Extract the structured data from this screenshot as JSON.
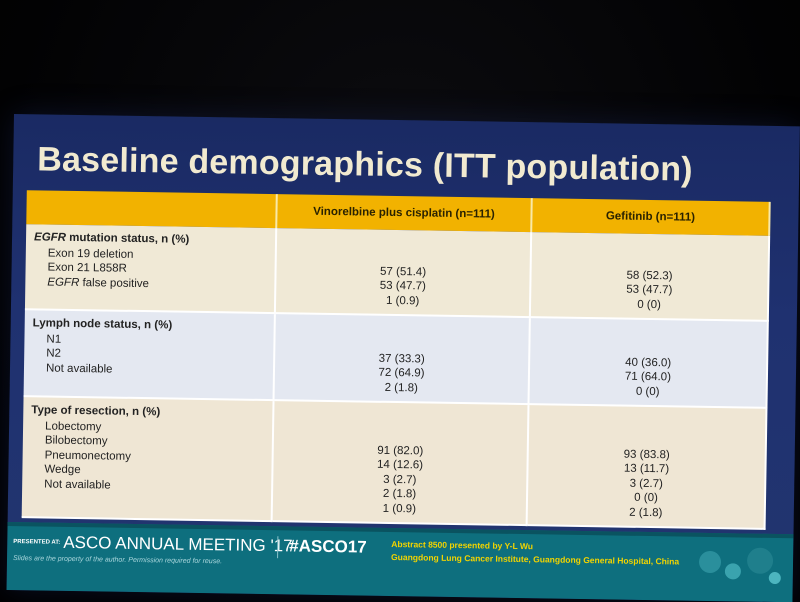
{
  "slide": {
    "title": "Baseline demographics (ITT population)"
  },
  "table": {
    "headers": [
      "",
      "Vinorelbine plus cisplatin (n=111)",
      "Gefitinib (n=111)"
    ],
    "sections": [
      {
        "title_italic": "EGFR",
        "title_rest": " mutation status, n (%)",
        "rows": [
          {
            "label": "Exon 19 deletion",
            "a": "57 (51.4)",
            "b": "58 (52.3)"
          },
          {
            "label": "Exon 21 L858R",
            "a": "53 (47.7)",
            "b": "53 (47.7)"
          },
          {
            "label_italic": "EGFR",
            "label_rest": " false positive",
            "a": "1 (0.9)",
            "b": "0 (0)"
          }
        ]
      },
      {
        "title": "Lymph node status, n (%)",
        "rows": [
          {
            "label": "N1",
            "a": "37 (33.3)",
            "b": "40 (36.0)"
          },
          {
            "label": "N2",
            "a": "72 (64.9)",
            "b": "71 (64.0)"
          },
          {
            "label": "Not available",
            "a": "2 (1.8)",
            "b": "0 (0)"
          }
        ]
      },
      {
        "title": "Type of resection, n (%)",
        "rows": [
          {
            "label": "Lobectomy",
            "a": "91 (82.0)",
            "b": "93 (83.8)"
          },
          {
            "label": "Bilobectomy",
            "a": "14 (12.6)",
            "b": "13 (11.7)"
          },
          {
            "label": "Pneumonectomy",
            "a": "3 (2.7)",
            "b": "3 (2.7)"
          },
          {
            "label": "Wedge",
            "a": "2 (1.8)",
            "b": "0 (0)"
          },
          {
            "label": "Not  available",
            "a": "1 (0.9)",
            "b": "2 (1.8)"
          }
        ]
      }
    ]
  },
  "footer": {
    "presented_at": "PRESENTED AT:",
    "meeting": "ASCO ANNUAL MEETING '17",
    "hashtag": "#ASCO17",
    "disclaimer": "Slides are the property of the author. Permission required for reuse.",
    "abstract": "Abstract 8500 presented by Y-L Wu",
    "institution": "Guangdong Lung Cancer Institute, Guangdong General Hospital, China"
  },
  "colors": {
    "slide_bg": "#1f3170",
    "title": "#f1ead0",
    "header_bg": "#f2b200",
    "footer_bg": "#0e6f7e",
    "footer_text_accent": "#f2d400"
  }
}
